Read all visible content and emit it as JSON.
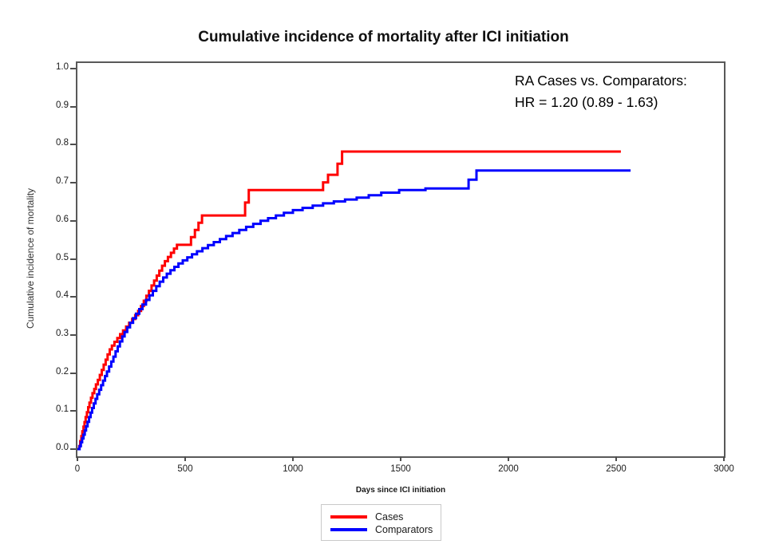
{
  "page": {
    "background": "#ffffff"
  },
  "chart": {
    "title": "Cumulative incidence of mortality after ICI initiation",
    "annotation_line1": "RA Cases vs. Comparators:",
    "annotation_line2": "HR = 1.20 (0.89 - 1.63)",
    "x_axis_title": "Days since ICI initiation",
    "y_axis_title": "Cumulative incidence of mortality"
  },
  "legend": {
    "items": [
      {
        "label": "Cases",
        "color": "#ff0000"
      },
      {
        "label": "Comparators",
        "color": "#0000ff"
      }
    ]
  },
  "chart_data": {
    "type": "line",
    "subtype": "step-after",
    "title": "Cumulative incidence of mortality after ICI initiation",
    "xlabel": "Days since ICI initiation",
    "ylabel": "Cumulative incidence of mortality",
    "xlim": [
      0,
      3000
    ],
    "ylim": [
      0.0,
      1.0
    ],
    "x_ticks": [
      0,
      500,
      1000,
      1500,
      2000,
      2500,
      3000
    ],
    "y_ticks": [
      "0.0",
      "0.1",
      "0.2",
      "0.3",
      "0.4",
      "0.5",
      "0.6",
      "0.7",
      "0.8",
      "0.9",
      "1.0"
    ],
    "grid": false,
    "legend_position": "bottom-center",
    "annotation": "RA Cases vs. Comparators:\nHR = 1.20 (0.89 - 1.63)",
    "series": [
      {
        "name": "Cases",
        "color": "#ff0000",
        "points": [
          [
            0,
            0
          ],
          [
            8,
            0.008
          ],
          [
            13,
            0.021
          ],
          [
            18,
            0.034
          ],
          [
            23,
            0.047
          ],
          [
            28,
            0.059
          ],
          [
            33,
            0.071
          ],
          [
            38,
            0.084
          ],
          [
            44,
            0.097
          ],
          [
            50,
            0.11
          ],
          [
            56,
            0.122
          ],
          [
            63,
            0.135
          ],
          [
            70,
            0.147
          ],
          [
            78,
            0.158
          ],
          [
            86,
            0.17
          ],
          [
            95,
            0.182
          ],
          [
            104,
            0.195
          ],
          [
            113,
            0.208
          ],
          [
            122,
            0.222
          ],
          [
            131,
            0.235
          ],
          [
            140,
            0.249
          ],
          [
            150,
            0.262
          ],
          [
            160,
            0.272
          ],
          [
            172,
            0.282
          ],
          [
            185,
            0.292
          ],
          [
            198,
            0.302
          ],
          [
            212,
            0.312
          ],
          [
            226,
            0.322
          ],
          [
            240,
            0.332
          ],
          [
            254,
            0.342
          ],
          [
            268,
            0.352
          ],
          [
            282,
            0.363
          ],
          [
            295,
            0.376
          ],
          [
            308,
            0.39
          ],
          [
            320,
            0.403
          ],
          [
            332,
            0.416
          ],
          [
            344,
            0.43
          ],
          [
            356,
            0.443
          ],
          [
            368,
            0.456
          ],
          [
            380,
            0.469
          ],
          [
            393,
            0.482
          ],
          [
            406,
            0.494
          ],
          [
            420,
            0.505
          ],
          [
            434,
            0.516
          ],
          [
            448,
            0.527
          ],
          [
            462,
            0.537
          ],
          [
            527,
            0.557
          ],
          [
            545,
            0.576
          ],
          [
            562,
            0.595
          ],
          [
            578,
            0.614
          ],
          [
            778,
            0.648
          ],
          [
            795,
            0.681
          ],
          [
            1140,
            0.701
          ],
          [
            1163,
            0.721
          ],
          [
            1207,
            0.75
          ],
          [
            1228,
            0.782
          ],
          [
            2522,
            0.782
          ]
        ]
      },
      {
        "name": "Comparators",
        "color": "#0000ff",
        "points": [
          [
            0,
            0
          ],
          [
            10,
            0.008
          ],
          [
            16,
            0.018
          ],
          [
            22,
            0.028
          ],
          [
            28,
            0.038
          ],
          [
            34,
            0.049
          ],
          [
            40,
            0.06
          ],
          [
            47,
            0.072
          ],
          [
            54,
            0.084
          ],
          [
            61,
            0.096
          ],
          [
            68,
            0.108
          ],
          [
            76,
            0.12
          ],
          [
            84,
            0.132
          ],
          [
            92,
            0.144
          ],
          [
            101,
            0.156
          ],
          [
            110,
            0.168
          ],
          [
            119,
            0.18
          ],
          [
            128,
            0.192
          ],
          [
            137,
            0.204
          ],
          [
            147,
            0.217
          ],
          [
            157,
            0.23
          ],
          [
            167,
            0.243
          ],
          [
            177,
            0.257
          ],
          [
            187,
            0.27
          ],
          [
            197,
            0.283
          ],
          [
            208,
            0.296
          ],
          [
            219,
            0.308
          ],
          [
            231,
            0.32
          ],
          [
            244,
            0.332
          ],
          [
            258,
            0.344
          ],
          [
            272,
            0.356
          ],
          [
            287,
            0.368
          ],
          [
            302,
            0.38
          ],
          [
            318,
            0.392
          ],
          [
            334,
            0.404
          ],
          [
            350,
            0.416
          ],
          [
            366,
            0.428
          ],
          [
            382,
            0.44
          ],
          [
            398,
            0.451
          ],
          [
            415,
            0.461
          ],
          [
            432,
            0.47
          ],
          [
            450,
            0.479
          ],
          [
            469,
            0.488
          ],
          [
            489,
            0.496
          ],
          [
            510,
            0.504
          ],
          [
            532,
            0.512
          ],
          [
            555,
            0.52
          ],
          [
            580,
            0.528
          ],
          [
            606,
            0.536
          ],
          [
            633,
            0.544
          ],
          [
            661,
            0.552
          ],
          [
            690,
            0.56
          ],
          [
            720,
            0.568
          ],
          [
            751,
            0.576
          ],
          [
            783,
            0.584
          ],
          [
            816,
            0.592
          ],
          [
            850,
            0.6
          ],
          [
            885,
            0.607
          ],
          [
            921,
            0.614
          ],
          [
            958,
            0.621
          ],
          [
            1000,
            0.628
          ],
          [
            1045,
            0.634
          ],
          [
            1092,
            0.64
          ],
          [
            1140,
            0.646
          ],
          [
            1190,
            0.651
          ],
          [
            1242,
            0.656
          ],
          [
            1296,
            0.661
          ],
          [
            1352,
            0.667
          ],
          [
            1410,
            0.674
          ],
          [
            1493,
            0.681
          ],
          [
            1615,
            0.685
          ],
          [
            1815,
            0.708
          ],
          [
            1852,
            0.732
          ],
          [
            2567,
            0.732
          ]
        ]
      }
    ]
  }
}
